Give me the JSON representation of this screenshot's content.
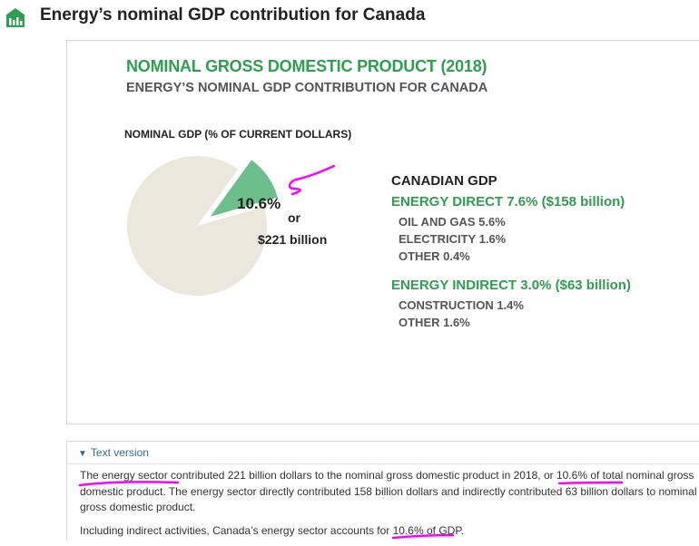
{
  "header": {
    "title": "Energy’s nominal GDP contribution for Canada",
    "icon": "building-icon",
    "icon_color": "#2e9e4f"
  },
  "chart_data": {
    "type": "pie",
    "title": "NOMINAL GROSS DOMESTIC PRODUCT (2018)",
    "subtitle": "ENERGY’S NOMINAL GDP CONTRIBUTION FOR CANADA",
    "pie_label": "NOMINAL GDP (% OF CURRENT DOLLARS)",
    "slices": [
      {
        "value": 10.6,
        "color": "#6cbe8a",
        "exploded": true
      },
      {
        "value": 89.4,
        "color": "#ebe7dd",
        "exploded": false
      }
    ],
    "slice_label": "10.6%",
    "slice_label_or": "or",
    "slice_label_amount": "$221 billion",
    "legend_title": "CANADIAN GDP",
    "legend_groups": [
      {
        "title": "ENERGY DIRECT 7.6% ($158 billion)",
        "items": [
          "OIL AND GAS 5.6%",
          "ELECTRICITY 1.6%",
          "OTHER 0.4%"
        ]
      },
      {
        "title": "ENERGY INDIRECT 3.0% ($63 billion)",
        "items": [
          "CONSTRUCTION 1.4%",
          "OTHER 1.6%"
        ]
      }
    ],
    "accent_color": "#2e9e4f"
  },
  "text_version": {
    "toggle_label": "Text version",
    "p1_a": "The energy sector contributed 221 billion dollars to the nominal gross domestic product in 2018, or 10.6% of total nominal gross domestic product. The energy sector directly contributed 158 billion dollars and indirectly contributed 63 billion dollars to nominal gross domestic product.",
    "p2": "Including indirect activities, Canada’s energy sector accounts for 10.6% of GDP."
  },
  "annotation_color": "#ff00ff"
}
